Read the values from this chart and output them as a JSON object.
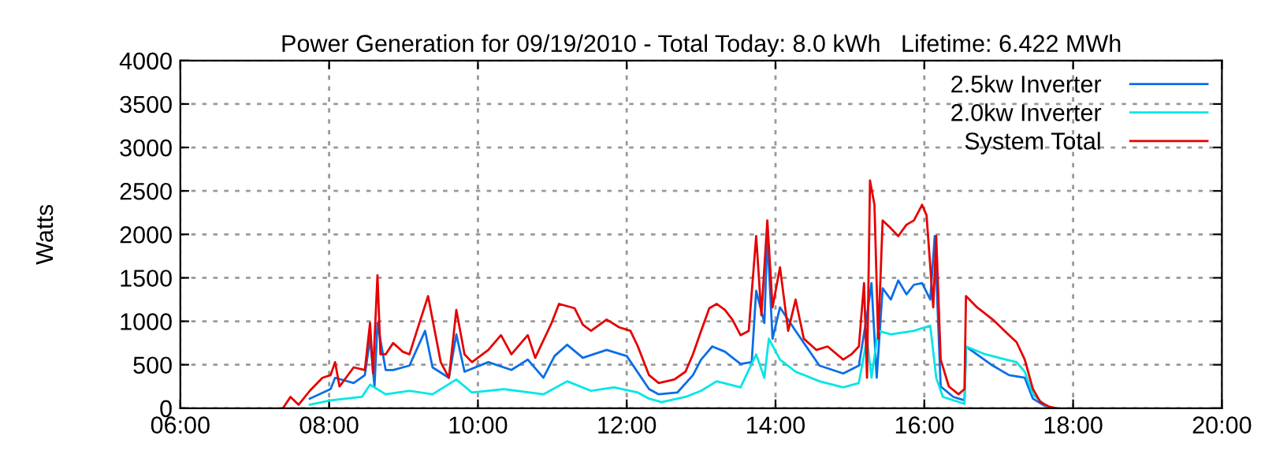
{
  "chart_data": {
    "type": "line",
    "title": "Power Generation for 09/19/2010 - Total Today: 8.0 kWh   Lifetime: 6.422 MWh",
    "ylabel": "Watts",
    "xlim": [
      6,
      20
    ],
    "xticks": [
      {
        "value": 6,
        "label": "06:00"
      },
      {
        "value": 8,
        "label": "08:00"
      },
      {
        "value": 10,
        "label": "10:00"
      },
      {
        "value": 12,
        "label": "12:00"
      },
      {
        "value": 14,
        "label": "14:00"
      },
      {
        "value": 16,
        "label": "16:00"
      },
      {
        "value": 18,
        "label": "18:00"
      },
      {
        "value": 20,
        "label": "20:00"
      }
    ],
    "ylim": [
      0,
      4000
    ],
    "yticks": [
      0,
      500,
      1000,
      1500,
      2000,
      2500,
      3000,
      3500,
      4000
    ],
    "grid": true,
    "legend": "top right",
    "marker": "none",
    "line_style": "solid",
    "series": [
      {
        "name": "2.5kw Inverter",
        "color": "#0a6ee6",
        "x": [
          7.74,
          8.02,
          8.08,
          8.33,
          8.48,
          8.55,
          8.61,
          8.65,
          8.76,
          8.86,
          9.08,
          9.29,
          9.39,
          9.61,
          9.71,
          9.82,
          10.14,
          10.45,
          10.67,
          10.88,
          11.03,
          11.2,
          11.41,
          11.73,
          12.0,
          12.3,
          12.43,
          12.68,
          12.89,
          13.0,
          13.15,
          13.32,
          13.53,
          13.68,
          13.74,
          13.85,
          13.89,
          13.96,
          14.06,
          14.27,
          14.59,
          14.91,
          15.12,
          15.23,
          15.29,
          15.36,
          15.44,
          15.55,
          15.65,
          15.76,
          15.86,
          15.97,
          16.08,
          16.14,
          16.22,
          16.39,
          16.54,
          16.56,
          16.92,
          17.14,
          17.35,
          17.46,
          17.67
        ],
        "values": [
          110,
          220,
          350,
          290,
          380,
          800,
          250,
          980,
          440,
          440,
          490,
          890,
          470,
          350,
          850,
          420,
          530,
          440,
          560,
          350,
          600,
          730,
          580,
          670,
          600,
          220,
          160,
          180,
          380,
          560,
          710,
          650,
          510,
          530,
          1350,
          980,
          1980,
          800,
          1160,
          890,
          490,
          400,
          490,
          1070,
          1440,
          350,
          1380,
          1250,
          1470,
          1310,
          1420,
          1440,
          1250,
          1980,
          250,
          130,
          90,
          710,
          490,
          380,
          350,
          110,
          0
        ]
      },
      {
        "name": "2.0kw Inverter",
        "color": "#00e6e6",
        "x": [
          7.74,
          8.02,
          8.44,
          8.55,
          8.76,
          9.08,
          9.39,
          9.71,
          9.92,
          10.35,
          10.88,
          11.2,
          11.52,
          11.83,
          12.15,
          12.3,
          12.47,
          12.79,
          13.0,
          13.21,
          13.53,
          13.74,
          13.85,
          13.91,
          14.06,
          14.27,
          14.59,
          14.91,
          15.12,
          15.23,
          15.29,
          15.38,
          15.55,
          15.86,
          16.08,
          16.16,
          16.25,
          16.54,
          16.56,
          16.82,
          17.14,
          17.24,
          17.35,
          17.46,
          17.67
        ],
        "values": [
          40,
          90,
          130,
          270,
          160,
          200,
          160,
          330,
          180,
          220,
          160,
          310,
          200,
          240,
          180,
          110,
          70,
          130,
          200,
          310,
          240,
          620,
          350,
          800,
          560,
          420,
          310,
          240,
          290,
          800,
          350,
          890,
          850,
          890,
          950,
          350,
          130,
          50,
          710,
          620,
          550,
          530,
          420,
          160,
          0
        ]
      },
      {
        "name": "System Total",
        "color": "#e60000",
        "x": [
          7.38,
          7.48,
          7.59,
          7.74,
          7.91,
          8.02,
          8.08,
          8.14,
          8.33,
          8.48,
          8.55,
          8.59,
          8.65,
          8.69,
          8.76,
          8.86,
          8.99,
          9.08,
          9.18,
          9.33,
          9.5,
          9.61,
          9.71,
          9.82,
          9.92,
          10.14,
          10.31,
          10.45,
          10.67,
          10.77,
          10.99,
          11.09,
          11.3,
          11.41,
          11.52,
          11.73,
          11.9,
          12.05,
          12.15,
          12.3,
          12.43,
          12.64,
          12.79,
          12.89,
          13.0,
          13.11,
          13.21,
          13.32,
          13.42,
          13.53,
          13.64,
          13.74,
          13.81,
          13.89,
          13.96,
          14.06,
          14.17,
          14.27,
          14.38,
          14.55,
          14.7,
          14.91,
          15.02,
          15.12,
          15.19,
          15.23,
          15.27,
          15.33,
          15.38,
          15.44,
          15.55,
          15.65,
          15.76,
          15.86,
          15.97,
          16.03,
          16.12,
          16.16,
          16.22,
          16.33,
          16.46,
          16.54,
          16.56,
          16.71,
          16.92,
          17.14,
          17.24,
          17.35,
          17.46,
          17.56,
          17.67,
          17.77
        ],
        "values": [
          0,
          130,
          40,
          200,
          350,
          380,
          530,
          250,
          470,
          440,
          980,
          400,
          1530,
          620,
          620,
          750,
          650,
          620,
          890,
          1290,
          530,
          350,
          1130,
          620,
          530,
          670,
          840,
          620,
          840,
          580,
          980,
          1200,
          1150,
          960,
          890,
          1020,
          930,
          890,
          710,
          380,
          290,
          330,
          420,
          620,
          890,
          1150,
          1200,
          1130,
          1020,
          840,
          890,
          1980,
          1070,
          2160,
          1160,
          1620,
          890,
          1250,
          800,
          670,
          710,
          560,
          620,
          710,
          1440,
          350,
          2620,
          2340,
          800,
          2160,
          2070,
          1980,
          2110,
          2160,
          2340,
          2220,
          1160,
          1980,
          560,
          250,
          160,
          220,
          1290,
          1160,
          1020,
          840,
          760,
          560,
          220,
          70,
          20,
          0
        ]
      }
    ]
  }
}
